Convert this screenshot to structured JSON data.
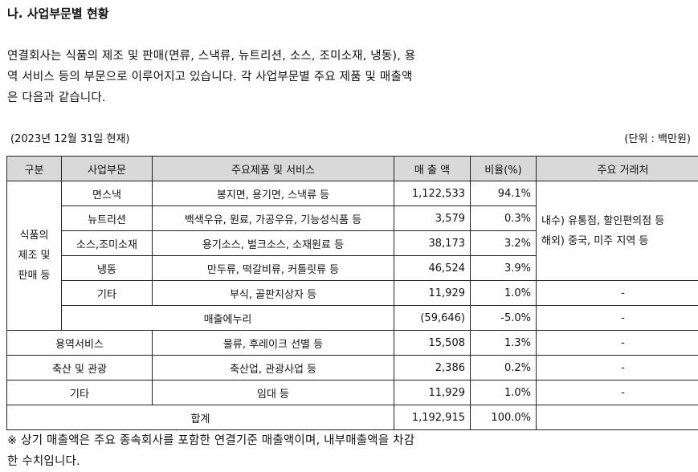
{
  "heading": "나. 사업부문별 현황",
  "intro_lines": [
    "연결회사는 식품의 제조 및 판매(면류, 스낵류, 뉴트리션, 소스, 조미소재, 냉동), 용",
    "역 서비스 등의 부문으로 이루어지고 있습니다. 각 사업부문별 주요 제품 및 매출액",
    "은 다음과 같습니다."
  ],
  "as_of": "(2023년 12월 31일 현재)",
  "unit": "(단위 : 백만원)",
  "table": {
    "headers": [
      "구분",
      "사업부문",
      "주요제품 및 서비스",
      "매 출 액",
      "비율(%)",
      "주요 거래처"
    ],
    "group_food": {
      "label_lines": [
        "식품의",
        "제조 및",
        "판매 등"
      ],
      "customers_lines": [
        "내수) 유통점, 할인편의점 등",
        "해외) 중국, 미주 지역 등"
      ],
      "rows": [
        {
          "segment": "면스낵",
          "products": "봉지면, 용기면, 스낵류 등",
          "sales": "1,122,533",
          "ratio": "94.1%"
        },
        {
          "segment": "뉴트리션",
          "products": "백색우유, 원료, 가공우유, 기능성식품 등",
          "sales": "3,579",
          "ratio": "0.3%"
        },
        {
          "segment": "소스,조미소재",
          "products": "용기소스, 벌크소스, 소재원료 등",
          "sales": "38,173",
          "ratio": "3.2%"
        },
        {
          "segment": "냉동",
          "products": "만두류, 떡갈비류, 커틀릿류 등",
          "sales": "46,524",
          "ratio": "3.9%"
        }
      ],
      "other": {
        "segment": "기타",
        "products": "부식, 골판지상자 등",
        "sales": "11,929",
        "ratio": "1.0%",
        "customers": "-"
      },
      "elimination": {
        "label": "매출에누리",
        "sales": "(59,646)",
        "ratio": "-5.0%",
        "customers": "-"
      }
    },
    "other_rows": [
      {
        "category": "용역서비스",
        "products": "물류, 후레이크 선별 등",
        "sales": "15,508",
        "ratio": "1.3%",
        "customers": "-"
      },
      {
        "category": "축산 및 관광",
        "products": "축산업, 관광사업 등",
        "sales": "2,386",
        "ratio": "0.2%",
        "customers": "-"
      },
      {
        "category": "기타",
        "products": "임대 등",
        "sales": "11,929",
        "ratio": "1.0%",
        "customers": "-"
      }
    ],
    "total": {
      "label": "합계",
      "sales": "1,192,915",
      "ratio": "100.0%",
      "customers": ""
    }
  },
  "note_lines": [
    "※ 상기 매출액은 주요 종속회사를 포함한 연결기준 매출액이며, 내부매출액을 차감",
    "한 수치입니다."
  ]
}
